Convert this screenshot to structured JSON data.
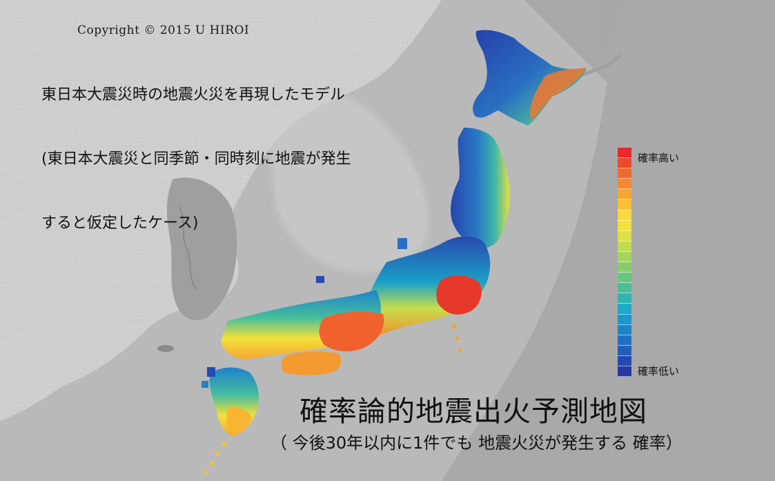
{
  "copyright": "Copyright © 2015 U HIROI",
  "description_lines": [
    "東日本大震災時の地震火災を再現したモデル",
    "(東日本大震災と同季節・同時刻に地震が発生",
    "すると仮定したケース)"
  ],
  "title": "確率論的地震出火予測地図",
  "subtitle": "（ 今後30年以内に1件でも 地震火災が発生する 確率）",
  "legend": {
    "high_label": "確率高い",
    "low_label": "確率低い",
    "colors": [
      "#e8282b",
      "#ec4a2c",
      "#f06a2d",
      "#f4892f",
      "#f7a731",
      "#fac233",
      "#fbd937",
      "#f2e13b",
      "#d9e144",
      "#bedc50",
      "#a2d55e",
      "#86cd6e",
      "#69c582",
      "#4cbd98",
      "#30b4b0",
      "#1eaac8",
      "#1a98cf",
      "#1d84cb",
      "#2070c4",
      "#235dbb",
      "#2549b0",
      "#2838a5"
    ]
  }
}
